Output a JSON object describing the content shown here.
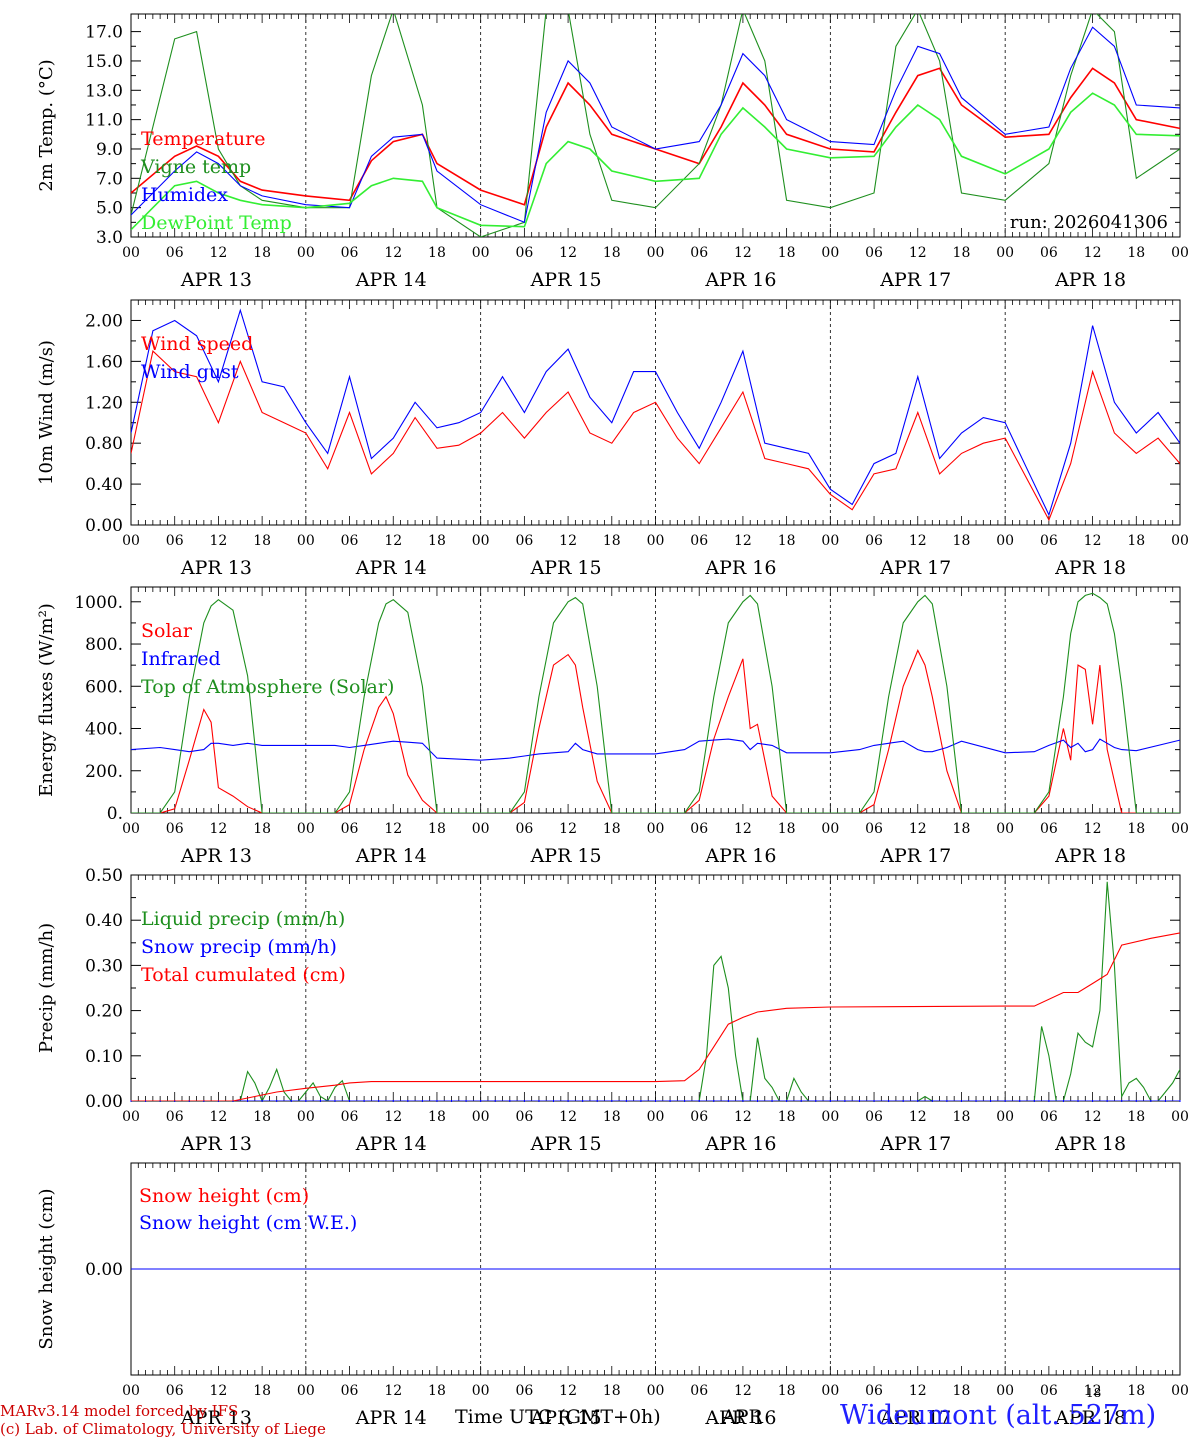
{
  "footer": {
    "model": "MARv3.14 model forced by IFS",
    "lab": "(c) Lab. of Climatology, University of Liege",
    "time_label": "Time UTC (GMT+0h)",
    "month": "APR",
    "small_tick": "18",
    "station": "Wideumont (alt. 527m)"
  },
  "colors": {
    "red": "#ff0000",
    "green": "#1e8f1e",
    "blue": "#0000ff",
    "lightgreen": "#33ee33"
  },
  "chart_data": [
    {
      "type": "line",
      "ylabel": "2m Temp. (°C)",
      "ylim": [
        3.0,
        18.2
      ],
      "yticks": [
        3.0,
        5.0,
        7.0,
        9.0,
        11.0,
        13.0,
        15.0,
        17.0
      ],
      "yticklabels": [
        "3.0",
        "5.0",
        "7.0",
        "9.0",
        "11.0",
        "13.0",
        "15.0",
        "17.0"
      ],
      "annotation": "run: 2026041306",
      "legend": [
        "Temperature",
        "Vigne temp",
        "Humidex",
        "DewPoint Temp"
      ],
      "x_hours": [
        0,
        6,
        9,
        12,
        15,
        18,
        24,
        30,
        33,
        36,
        40,
        42,
        48,
        54,
        57,
        60,
        63,
        66,
        72,
        78,
        81,
        84,
        87,
        90,
        96,
        102,
        105,
        108,
        111,
        114,
        120,
        126,
        129,
        132,
        135,
        138,
        144
      ],
      "series": [
        {
          "name": "Temperature",
          "color": "red",
          "values": [
            6.0,
            8.5,
            9.2,
            8.5,
            6.8,
            6.2,
            5.8,
            5.5,
            8.2,
            9.5,
            10.0,
            8.0,
            6.2,
            5.2,
            10.5,
            13.5,
            12.0,
            10.0,
            9.0,
            8.0,
            10.5,
            13.5,
            12.0,
            10.0,
            9.0,
            8.8,
            11.5,
            14.0,
            14.5,
            12.0,
            9.8,
            10.0,
            12.5,
            14.5,
            13.5,
            11.0,
            10.4
          ]
        },
        {
          "name": "Vigne temp",
          "color": "green",
          "values": [
            4.5,
            16.5,
            17.0,
            9.0,
            6.5,
            5.5,
            5.0,
            5.0,
            14.0,
            18.5,
            12.0,
            5.0,
            3.0,
            4.0,
            18.5,
            18.5,
            10.0,
            5.5,
            5.0,
            8.0,
            12.0,
            18.5,
            15.0,
            5.5,
            5.0,
            6.0,
            16.0,
            18.5,
            15.0,
            6.0,
            5.5,
            8.0,
            14.0,
            18.5,
            17.0,
            7.0,
            9.0
          ]
        },
        {
          "name": "Humidex",
          "color": "blue",
          "values": [
            4.5,
            7.5,
            8.8,
            8.0,
            6.5,
            5.8,
            5.2,
            5.0,
            8.5,
            9.8,
            10.0,
            7.5,
            5.2,
            4.0,
            11.5,
            15.0,
            13.5,
            10.5,
            9.0,
            9.5,
            12.0,
            15.5,
            14.0,
            11.0,
            9.5,
            9.3,
            13.0,
            16.0,
            15.5,
            12.5,
            10.0,
            10.5,
            14.5,
            17.3,
            16.0,
            12.0,
            11.8
          ]
        },
        {
          "name": "DewPoint Temp",
          "color": "lightgreen",
          "values": [
            3.5,
            6.5,
            6.8,
            6.0,
            5.5,
            5.2,
            5.0,
            5.3,
            6.5,
            7.0,
            6.8,
            5.0,
            3.8,
            3.7,
            8.0,
            9.5,
            9.0,
            7.5,
            6.8,
            7.0,
            10.0,
            11.8,
            10.5,
            9.0,
            8.4,
            8.5,
            10.5,
            12.0,
            11.0,
            8.5,
            7.3,
            9.0,
            11.5,
            12.8,
            12.0,
            10.0,
            9.9
          ]
        }
      ]
    },
    {
      "type": "line",
      "ylabel": "10m Wind (m/s)",
      "ylim": [
        0.0,
        2.2
      ],
      "yticks": [
        0.0,
        0.4,
        0.8,
        1.2,
        1.6,
        2.0
      ],
      "yticklabels": [
        "0.00",
        "0.40",
        "0.80",
        "1.20",
        "1.60",
        "2.00"
      ],
      "legend": [
        "Wind speed",
        "Wind gust"
      ],
      "x_hours": [
        0,
        3,
        6,
        9,
        12,
        15,
        18,
        21,
        24,
        27,
        30,
        33,
        36,
        39,
        42,
        45,
        48,
        51,
        54,
        57,
        60,
        63,
        66,
        69,
        72,
        75,
        78,
        81,
        84,
        87,
        90,
        93,
        96,
        99,
        102,
        105,
        108,
        111,
        114,
        117,
        120,
        123,
        126,
        129,
        132,
        135,
        138,
        141,
        144
      ],
      "series": [
        {
          "name": "Wind speed",
          "color": "red",
          "values": [
            0.7,
            1.7,
            1.5,
            1.45,
            1.0,
            1.6,
            1.1,
            1.0,
            0.9,
            0.55,
            1.1,
            0.5,
            0.7,
            1.05,
            0.75,
            0.78,
            0.9,
            1.1,
            0.85,
            1.1,
            1.3,
            0.9,
            0.8,
            1.1,
            1.2,
            0.85,
            0.6,
            0.95,
            1.3,
            0.65,
            0.6,
            0.55,
            0.3,
            0.15,
            0.5,
            0.55,
            1.1,
            0.5,
            0.7,
            0.8,
            0.85,
            0.45,
            0.05,
            0.6,
            1.5,
            0.9,
            0.7,
            0.85,
            0.6
          ]
        },
        {
          "name": "Wind gust",
          "color": "blue",
          "values": [
            0.9,
            1.9,
            2.0,
            1.85,
            1.4,
            2.1,
            1.4,
            1.35,
            1.0,
            0.7,
            1.45,
            0.65,
            0.85,
            1.2,
            0.95,
            1.0,
            1.1,
            1.45,
            1.1,
            1.5,
            1.72,
            1.25,
            1.0,
            1.5,
            1.5,
            1.1,
            0.75,
            1.2,
            1.7,
            0.8,
            0.75,
            0.7,
            0.35,
            0.2,
            0.6,
            0.7,
            1.45,
            0.65,
            0.9,
            1.05,
            1.0,
            0.55,
            0.1,
            0.8,
            1.95,
            1.2,
            0.9,
            1.1,
            0.8
          ]
        }
      ]
    },
    {
      "type": "line",
      "ylabel": "Energy fluxes (W/m²)",
      "ylim": [
        0,
        1070
      ],
      "yticks": [
        0,
        200,
        400,
        600,
        800,
        1000
      ],
      "yticklabels": [
        "0.",
        "200.",
        "400.",
        "600.",
        "800.",
        "1000."
      ],
      "legend": [
        "Solar",
        "Infrared",
        "Top of Atmosphere (Solar)"
      ],
      "x_hours": [
        0,
        4,
        6,
        8,
        10,
        11,
        12,
        14,
        16,
        18,
        24,
        28,
        30,
        32,
        34,
        35,
        36,
        38,
        40,
        42,
        48,
        52,
        54,
        56,
        58,
        60,
        61,
        62,
        64,
        66,
        72,
        76,
        78,
        80,
        82,
        84,
        85,
        86,
        88,
        90,
        96,
        100,
        102,
        104,
        106,
        108,
        109,
        110,
        112,
        114,
        120,
        124,
        126,
        128,
        129,
        130,
        131,
        132,
        133,
        134,
        135,
        136,
        138,
        144
      ],
      "series": [
        {
          "name": "Solar",
          "color": "red",
          "values": [
            0,
            0,
            20,
            250,
            490,
            430,
            120,
            80,
            30,
            0,
            0,
            0,
            40,
            300,
            500,
            550,
            470,
            180,
            60,
            0,
            0,
            0,
            50,
            400,
            700,
            750,
            700,
            500,
            150,
            0,
            0,
            0,
            60,
            350,
            550,
            730,
            400,
            420,
            80,
            0,
            0,
            0,
            40,
            300,
            600,
            770,
            700,
            550,
            200,
            0,
            0,
            0,
            80,
            400,
            250,
            700,
            680,
            420,
            700,
            300,
            150,
            0,
            0,
            0
          ]
        },
        {
          "name": "Infrared",
          "color": "blue",
          "values": [
            300,
            310,
            300,
            290,
            300,
            330,
            330,
            320,
            330,
            320,
            320,
            320,
            310,
            320,
            330,
            335,
            340,
            335,
            330,
            260,
            250,
            260,
            270,
            280,
            285,
            290,
            330,
            300,
            280,
            280,
            280,
            300,
            340,
            345,
            350,
            340,
            300,
            330,
            320,
            285,
            285,
            300,
            320,
            330,
            340,
            300,
            290,
            290,
            310,
            340,
            285,
            290,
            320,
            345,
            310,
            330,
            290,
            300,
            350,
            330,
            310,
            300,
            295,
            345
          ]
        },
        {
          "name": "Top of Atmosphere (Solar)",
          "color": "green",
          "values": [
            0,
            0,
            100,
            550,
            900,
            980,
            1010,
            960,
            650,
            0,
            0,
            0,
            100,
            550,
            900,
            990,
            1010,
            950,
            600,
            0,
            0,
            0,
            100,
            550,
            900,
            1000,
            1020,
            990,
            600,
            0,
            0,
            0,
            100,
            550,
            900,
            1000,
            1030,
            990,
            600,
            0,
            0,
            0,
            100,
            550,
            900,
            1000,
            1030,
            990,
            600,
            0,
            0,
            0,
            100,
            550,
            850,
            1000,
            1030,
            1040,
            1020,
            990,
            850,
            600,
            0,
            0
          ]
        }
      ]
    },
    {
      "type": "line",
      "ylabel": "Precip (mm/h)",
      "ylim": [
        0.0,
        0.5
      ],
      "yticks": [
        0.0,
        0.1,
        0.2,
        0.3,
        0.4,
        0.5
      ],
      "yticklabels": [
        "0.00",
        "0.10",
        "0.20",
        "0.30",
        "0.40",
        "0.50"
      ],
      "legend": [
        "Liquid precip (mm/h)",
        "Snow precip (mm/h)",
        "Total cumulated (cm)"
      ],
      "series": [
        {
          "name": "Liquid precip (mm/h)",
          "color": "green",
          "x": [
            0,
            15,
            16,
            17,
            18,
            19,
            20,
            21,
            22,
            23,
            24,
            25,
            26,
            27,
            28,
            29,
            30,
            31,
            32,
            33,
            72,
            78,
            79,
            80,
            81,
            82,
            83,
            84,
            85,
            86,
            87,
            88,
            89,
            90,
            91,
            92,
            93,
            94,
            108,
            109,
            110,
            120,
            124,
            125,
            126,
            127,
            128,
            129,
            130,
            131,
            132,
            133,
            134,
            135,
            136,
            137,
            138,
            139,
            140,
            141,
            142,
            143,
            144
          ],
          "values": [
            0,
            0,
            0.065,
            0.04,
            0.0,
            0.03,
            0.07,
            0.02,
            0.0,
            0.0,
            0.02,
            0.04,
            0.01,
            0.0,
            0.03,
            0.045,
            0.0,
            0.0,
            0.0,
            0.0,
            0.0,
            0.0,
            0.1,
            0.3,
            0.32,
            0.25,
            0.1,
            0.0,
            0.0,
            0.14,
            0.05,
            0.03,
            0.0,
            0.0,
            0.05,
            0.02,
            0.0,
            0.0,
            0.0,
            0.01,
            0.0,
            0.0,
            0.0,
            0.165,
            0.1,
            0.0,
            0.0,
            0.06,
            0.15,
            0.13,
            0.12,
            0.2,
            0.485,
            0.3,
            0.01,
            0.04,
            0.05,
            0.03,
            0.0,
            0.0,
            0.02,
            0.04,
            0.07
          ]
        },
        {
          "name": "Snow precip (mm/h)",
          "color": "blue",
          "x": [
            0,
            144
          ],
          "values": [
            0,
            0
          ]
        },
        {
          "name": "Total cumulated (cm)",
          "color": "red",
          "x": [
            0,
            14,
            17,
            20,
            24,
            28,
            30,
            33,
            72,
            76,
            78,
            80,
            82,
            84,
            86,
            90,
            96,
            120,
            124,
            128,
            130,
            132,
            134,
            136,
            140,
            144
          ],
          "values": [
            0,
            0,
            0.01,
            0.02,
            0.028,
            0.035,
            0.04,
            0.043,
            0.043,
            0.045,
            0.07,
            0.12,
            0.17,
            0.185,
            0.197,
            0.205,
            0.208,
            0.21,
            0.21,
            0.24,
            0.24,
            0.26,
            0.28,
            0.345,
            0.36,
            0.372
          ]
        }
      ]
    },
    {
      "type": "line",
      "ylabel": "Snow height (cm)",
      "ylim": [
        -1.0,
        1.0
      ],
      "yticks": [
        0.0
      ],
      "yticklabels": [
        "0.00"
      ],
      "legend": [
        "Snow height (cm)",
        "Snow height (cm W.E.)"
      ],
      "series": [
        {
          "name": "Snow height (cm)",
          "color": "red",
          "x": [
            0,
            144
          ],
          "values": [
            0,
            0
          ]
        },
        {
          "name": "Snow height (cm W.E.)",
          "color": "blue",
          "x": [
            0,
            144
          ],
          "values": [
            0,
            0
          ]
        }
      ]
    }
  ],
  "xaxis": {
    "hour_labels": [
      "00",
      "06",
      "12",
      "18"
    ],
    "day_labels": [
      "APR 13",
      "APR 14",
      "APR 15",
      "APR 16",
      "APR 17",
      "APR 18"
    ],
    "range_hours": [
      0,
      144
    ]
  }
}
